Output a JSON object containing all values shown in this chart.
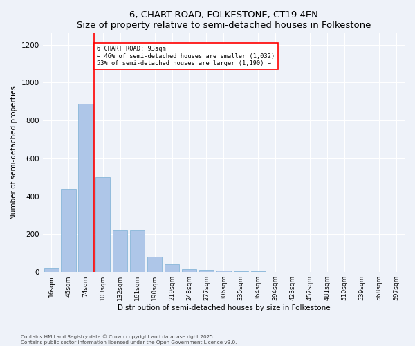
{
  "title": "6, CHART ROAD, FOLKESTONE, CT19 4EN",
  "subtitle": "Size of property relative to semi-detached houses in Folkestone",
  "xlabel": "Distribution of semi-detached houses by size in Folkestone",
  "ylabel": "Number of semi-detached properties",
  "categories": [
    "16sqm",
    "45sqm",
    "74sqm",
    "103sqm",
    "132sqm",
    "161sqm",
    "190sqm",
    "219sqm",
    "248sqm",
    "277sqm",
    "306sqm",
    "335sqm",
    "364sqm",
    "394sqm",
    "423sqm",
    "452sqm",
    "481sqm",
    "510sqm",
    "539sqm",
    "568sqm",
    "597sqm"
  ],
  "values": [
    20,
    440,
    890,
    500,
    220,
    220,
    80,
    40,
    15,
    10,
    8,
    5,
    3,
    1,
    0,
    0,
    0,
    0,
    0,
    0,
    0
  ],
  "bar_color": "#aec6e8",
  "bar_edgecolor": "#7aafd4",
  "red_line_x": 2.5,
  "annotation_title": "6 CHART ROAD: 93sqm",
  "annotation_line1": "← 46% of semi-detached houses are smaller (1,032)",
  "annotation_line2": "53% of semi-detached houses are larger (1,190) →",
  "ylim": [
    0,
    1260
  ],
  "yticks": [
    0,
    200,
    400,
    600,
    800,
    1000,
    1200
  ],
  "background_color": "#eef2f9",
  "grid_color": "#ffffff",
  "footer1": "Contains HM Land Registry data © Crown copyright and database right 2025.",
  "footer2": "Contains public sector information licensed under the Open Government Licence v3.0."
}
